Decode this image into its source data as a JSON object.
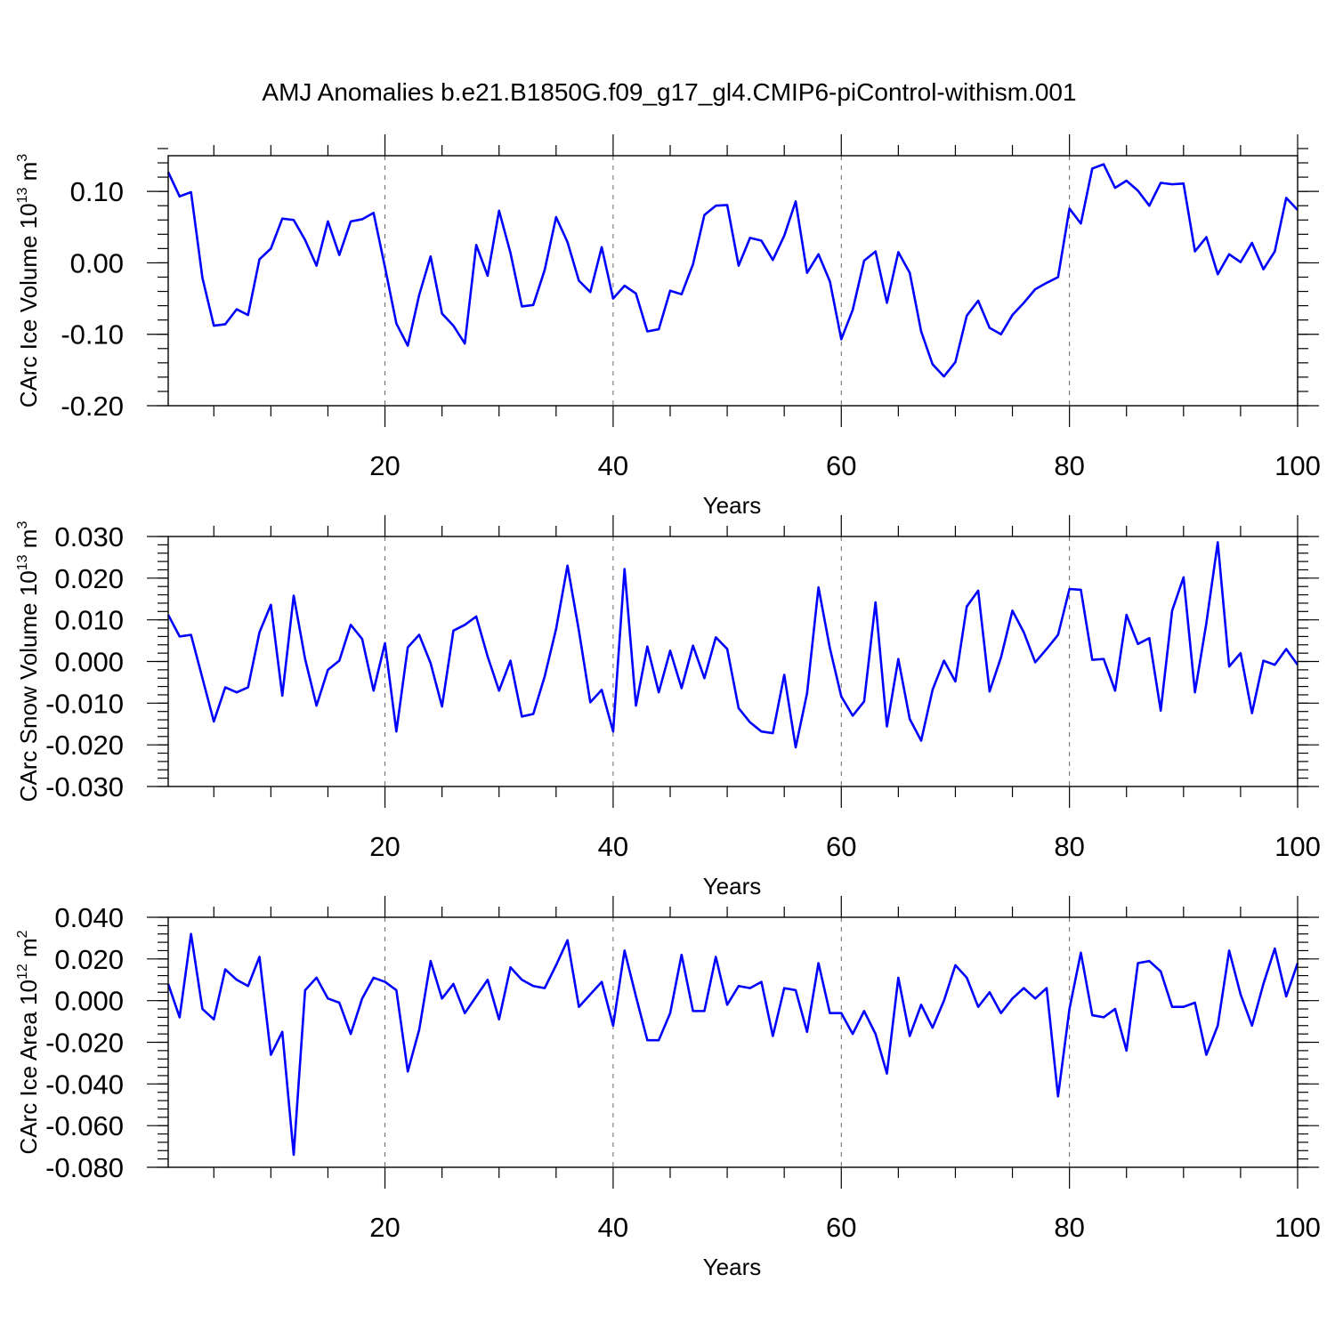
{
  "title": "AMJ Anomalies b.e21.B1850G.f09_g17_gl4.CMIP6-piControl-withism.001",
  "colors": {
    "line": "#0000ff",
    "axis": "#000000",
    "grid": "#666666"
  },
  "chart_data": [
    {
      "type": "line",
      "ylabel": "CArc Ice Volume 10",
      "ylabel_exp": "13",
      "ylabel_unit": " m",
      "ylabel_unit_exp": "3",
      "xlabel": "Years",
      "xlim": [
        1,
        100
      ],
      "ylim": [
        -0.2,
        0.15
      ],
      "x_ticks": [
        20,
        40,
        60,
        80,
        100
      ],
      "y_ticks": [
        -0.2,
        -0.1,
        0.0,
        0.1
      ],
      "y_tick_labels": [
        "-0.20",
        "-0.10",
        "0.00",
        "0.10"
      ],
      "y_minor_step": 0.02,
      "grid": "vertical dashed at major x ticks",
      "series": [
        {
          "values": [
            0.127,
            0.093,
            0.099,
            -0.021,
            -0.088,
            -0.086,
            -0.065,
            -0.073,
            0.005,
            0.02,
            0.062,
            0.06,
            0.032,
            -0.004,
            0.058,
            0.011,
            0.058,
            0.061,
            0.07,
            -0.006,
            -0.085,
            -0.116,
            -0.045,
            0.009,
            -0.071,
            -0.088,
            -0.113,
            0.025,
            -0.018,
            0.073,
            0.014,
            -0.061,
            -0.059,
            -0.01,
            0.064,
            0.029,
            -0.025,
            -0.041,
            0.022,
            -0.05,
            -0.032,
            -0.043,
            -0.096,
            -0.093,
            -0.039,
            -0.044,
            -0.002,
            0.067,
            0.08,
            0.081,
            -0.004,
            0.035,
            0.031,
            0.004,
            0.038,
            0.086,
            -0.014,
            0.012,
            -0.026,
            -0.107,
            -0.066,
            0.003,
            0.016,
            -0.056,
            0.015,
            -0.014,
            -0.096,
            -0.142,
            -0.159,
            -0.139,
            -0.074,
            -0.053,
            -0.091,
            -0.1,
            -0.073,
            -0.056,
            -0.037,
            -0.028,
            -0.02,
            0.076,
            0.055,
            0.132,
            0.138,
            0.105,
            0.115,
            0.101,
            0.08,
            0.112,
            0.11,
            0.111,
            0.016,
            0.036,
            -0.016,
            0.012,
            0.001,
            0.028,
            -0.009,
            0.016,
            0.091,
            0.074
          ]
        }
      ]
    },
    {
      "type": "line",
      "ylabel": "CArc Snow Volume 10",
      "ylabel_exp": "13",
      "ylabel_unit": " m",
      "ylabel_unit_exp": "3",
      "xlabel": "Years",
      "xlim": [
        1,
        100
      ],
      "ylim": [
        -0.03,
        0.03
      ],
      "x_ticks": [
        20,
        40,
        60,
        80,
        100
      ],
      "y_ticks": [
        -0.03,
        -0.02,
        -0.01,
        0.0,
        0.01,
        0.02,
        0.03
      ],
      "y_tick_labels": [
        "-0.030",
        "-0.020",
        "-0.010",
        "0.000",
        "0.010",
        "0.020",
        "0.030"
      ],
      "y_minor_step": 0.002,
      "grid": "vertical dashed at major x ticks",
      "series": [
        {
          "values": [
            0.0112,
            0.006,
            0.0064,
            -0.004,
            -0.0144,
            -0.0062,
            -0.0074,
            -0.0062,
            0.007,
            0.0136,
            -0.0082,
            0.0158,
            0.0006,
            -0.0106,
            -0.002,
            0.0002,
            0.0088,
            0.0054,
            -0.007,
            0.0044,
            -0.0168,
            0.0034,
            0.0064,
            -0.0004,
            -0.0108,
            0.0074,
            0.0088,
            0.0108,
            0.0012,
            -0.007,
            0.0002,
            -0.0132,
            -0.0126,
            -0.0036,
            0.0078,
            0.023,
            0.0074,
            -0.0098,
            -0.0068,
            -0.0168,
            0.0222,
            -0.0106,
            0.0036,
            -0.0074,
            0.0026,
            -0.0064,
            0.0038,
            -0.004,
            0.0058,
            0.003,
            -0.0112,
            -0.0146,
            -0.0168,
            -0.0172,
            -0.0032,
            -0.0206,
            -0.0076,
            0.0178,
            0.0032,
            -0.0084,
            -0.013,
            -0.0096,
            0.0142,
            -0.0156,
            0.0006,
            -0.0138,
            -0.019,
            -0.0068,
            0.0002,
            -0.0048,
            0.0132,
            0.017,
            -0.0072,
            0.001,
            0.0122,
            0.007,
            -0.0002,
            0.003,
            0.0064,
            0.0174,
            0.0172,
            0.0004,
            0.0006,
            -0.007,
            0.0112,
            0.0042,
            0.0056,
            -0.0118,
            0.0122,
            0.0202,
            -0.0074,
            0.0092,
            0.0286,
            -0.0012,
            0.002,
            -0.0124,
            0.0002,
            -0.0008,
            0.003,
            -0.0008
          ]
        }
      ]
    },
    {
      "type": "line",
      "ylabel": "CArc Ice Area 10",
      "ylabel_exp": "12",
      "ylabel_unit": " m",
      "ylabel_unit_exp": "2",
      "xlabel": "Years",
      "xlim": [
        1,
        100
      ],
      "ylim": [
        -0.08,
        0.04
      ],
      "x_ticks": [
        20,
        40,
        60,
        80,
        100
      ],
      "y_ticks": [
        -0.08,
        -0.06,
        -0.04,
        -0.02,
        0.0,
        0.02,
        0.04
      ],
      "y_tick_labels": [
        "-0.080",
        "-0.060",
        "-0.040",
        "-0.020",
        "0.000",
        "0.020",
        "0.040"
      ],
      "y_minor_step": 0.004,
      "grid": "vertical dashed at major x ticks",
      "series": [
        {
          "values": [
            0.008,
            -0.008,
            0.032,
            -0.004,
            -0.009,
            0.015,
            0.01,
            0.007,
            0.021,
            -0.026,
            -0.015,
            -0.074,
            0.005,
            0.011,
            0.001,
            -0.001,
            -0.016,
            0.001,
            0.011,
            0.009,
            0.005,
            -0.034,
            -0.014,
            0.019,
            0.001,
            0.008,
            -0.006,
            0.002,
            0.01,
            -0.009,
            0.016,
            0.01,
            0.007,
            0.006,
            0.017,
            0.029,
            -0.003,
            0.003,
            0.009,
            -0.012,
            0.024,
            0.002,
            -0.019,
            -0.019,
            -0.006,
            0.022,
            -0.005,
            -0.005,
            0.021,
            -0.002,
            0.007,
            0.006,
            0.009,
            -0.017,
            0.006,
            0.005,
            -0.015,
            0.018,
            -0.006,
            -0.006,
            -0.016,
            -0.005,
            -0.016,
            -0.035,
            0.011,
            -0.017,
            -0.002,
            -0.013,
            0.0,
            0.017,
            0.011,
            -0.003,
            0.004,
            -0.006,
            0.001,
            0.006,
            0.001,
            0.006,
            -0.046,
            -0.004,
            0.023,
            -0.007,
            -0.008,
            -0.004,
            -0.024,
            0.018,
            0.019,
            0.014,
            -0.003,
            -0.003,
            -0.001,
            -0.026,
            -0.012,
            0.024,
            0.003,
            -0.012,
            0.008,
            0.025,
            0.002,
            0.018
          ]
        }
      ]
    }
  ]
}
